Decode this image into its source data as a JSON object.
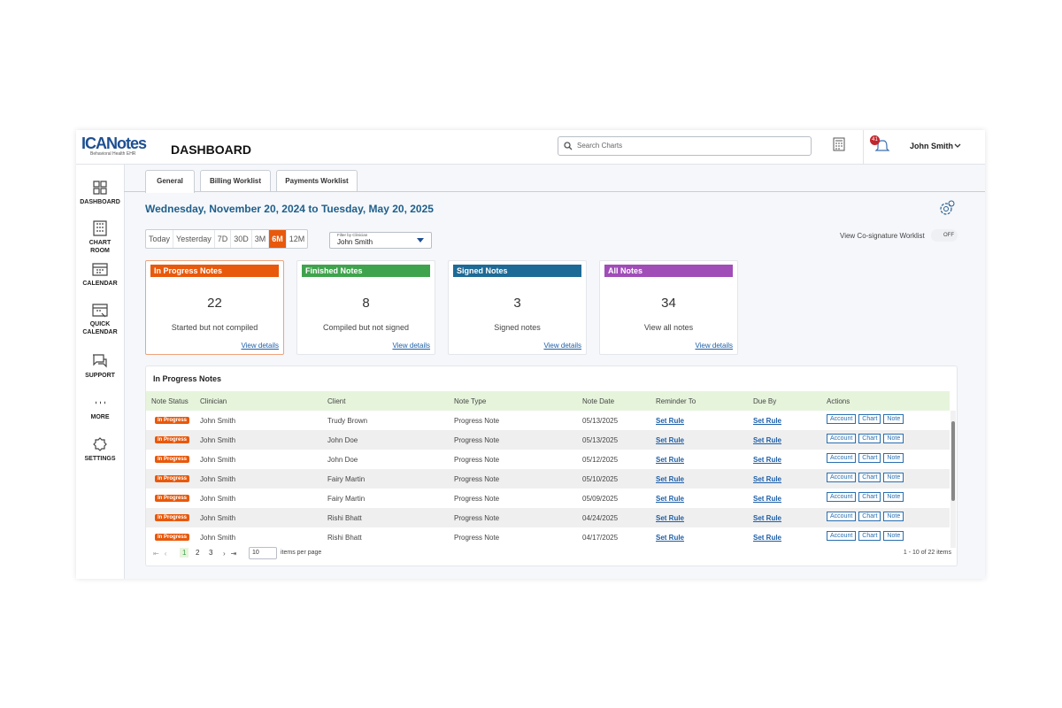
{
  "header": {
    "logo": "ICANotes",
    "logo_subtitle": "Behavioral Health EHR",
    "page_title": "DASHBOARD",
    "search_placeholder": "Search Charts",
    "notification_count": "41",
    "user": "John Smith"
  },
  "sidebar": [
    "DASHBOARD",
    "CHART ROOM",
    "CALENDAR",
    "QUICK CALENDAR",
    "SUPPORT",
    "MORE",
    "SETTINGS"
  ],
  "tabs": [
    "General",
    "Billing Worklist",
    "Payments Worklist"
  ],
  "date_range": "Wednesday, November 20, 2024 to Tuesday, May 20, 2025",
  "range_buttons": [
    "Today",
    "Yesterday",
    "7D",
    "30D",
    "3M",
    "6M",
    "12M"
  ],
  "filter": {
    "label": "Filter by Clinician",
    "value": "John Smith"
  },
  "cosignature": {
    "label": "View Co-signature Worklist",
    "toggle": "OFF"
  },
  "cards": [
    {
      "title": "In Progress Notes",
      "count": "22",
      "description": "Started but not compiled",
      "link": "View details"
    },
    {
      "title": "Finished Notes",
      "count": "8",
      "description": "Compiled but not signed",
      "link": "View details"
    },
    {
      "title": "Signed Notes",
      "count": "3",
      "description": "Signed notes",
      "link": "View details"
    },
    {
      "title": "All Notes",
      "count": "34",
      "description": "View all notes",
      "link": "View details"
    }
  ],
  "table": {
    "title": "In Progress Notes",
    "columns": [
      "Note Status",
      "Clinician",
      "Client",
      "Note Type",
      "Note Date",
      "Reminder To",
      "Due By",
      "Actions"
    ],
    "action_buttons": [
      "Account",
      "Chart",
      "Note"
    ],
    "rows": [
      [
        "In Progress",
        "John Smith",
        "Trudy Brown",
        "Progress Note",
        "05/13/2025",
        "Set Rule",
        "Set Rule"
      ],
      [
        "In Progress",
        "John Smith",
        "John Doe",
        "Progress Note",
        "05/13/2025",
        "Set Rule",
        "Set Rule"
      ],
      [
        "In Progress",
        "John Smith",
        "John Doe",
        "Progress Note",
        "05/12/2025",
        "Set Rule",
        "Set Rule"
      ],
      [
        "In Progress",
        "John Smith",
        "Fairy Martin",
        "Progress Note",
        "05/10/2025",
        "Set Rule",
        "Set Rule"
      ],
      [
        "In Progress",
        "John Smith",
        "Fairy Martin",
        "Progress Note",
        "05/09/2025",
        "Set Rule",
        "Set Rule"
      ],
      [
        "In Progress",
        "John Smith",
        "Rishi Bhatt",
        "Progress Note",
        "04/24/2025",
        "Set Rule",
        "Set Rule"
      ],
      [
        "In Progress",
        "John Smith",
        "Rishi Bhatt",
        "Progress Note",
        "04/17/2025",
        "Set Rule",
        "Set Rule"
      ]
    ]
  },
  "pagination": {
    "pages": [
      "1",
      "2",
      "3"
    ],
    "page_size": "10",
    "page_size_label": "items per page",
    "summary": "1 - 10 of 22 items"
  }
}
